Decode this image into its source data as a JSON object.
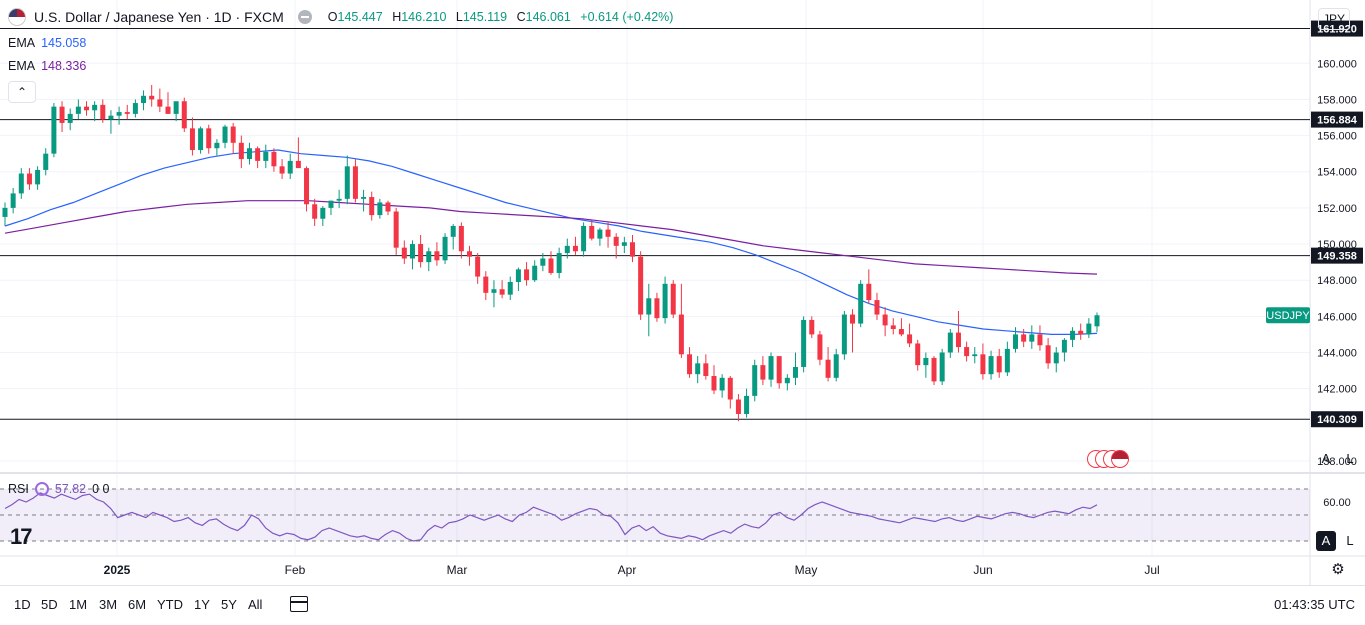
{
  "header": {
    "title": "U.S. Dollar / Japanese Yen · 1D · FXCM",
    "ohlc": [
      {
        "label": "O",
        "value": "145.447"
      },
      {
        "label": "H",
        "value": "146.210"
      },
      {
        "label": "L",
        "value": "145.119"
      },
      {
        "label": "C",
        "value": "146.061"
      },
      {
        "label": "",
        "value": "+0.614 (+0.42%)"
      }
    ]
  },
  "indicators": {
    "ema1": {
      "label": "EMA",
      "value": "145.058",
      "color": "#2962ff"
    },
    "ema2": {
      "label": "EMA",
      "value": "148.336",
      "color": "#7b1fa2"
    },
    "rsi": {
      "label": "RSI",
      "value": "57.82",
      "extra": "0 0",
      "color": "#7e57c2"
    }
  },
  "price_axis": {
    "currency": "JPY",
    "ticks": [
      "160.000",
      "158.000",
      "156.000",
      "154.000",
      "152.000",
      "150.000",
      "148.000",
      "146.000",
      "144.000",
      "142.000",
      "138.000"
    ],
    "symbol_label": "USDJPY",
    "rsi_tick": "60.00",
    "scale_buttons": [
      "A",
      "L"
    ]
  },
  "horizontal_lines": [
    "161.920",
    "156.884",
    "149.358",
    "140.309"
  ],
  "time_axis": {
    "labels": [
      "2025",
      "Feb",
      "Mar",
      "Apr",
      "May",
      "Jun",
      "Jul"
    ]
  },
  "toolbar": {
    "ranges": [
      "1D",
      "5D",
      "1M",
      "3M",
      "6M",
      "YTD",
      "1Y",
      "5Y",
      "All"
    ],
    "clock": "01:43:35 UTC"
  },
  "colors": {
    "up": "#089981",
    "down": "#f23645",
    "rsi_band": "#7e57c2",
    "ema_fast": "#2962ff",
    "ema_slow": "#7b1fa2"
  },
  "chart_data": {
    "type": "candlestick",
    "ylim": [
      137.5,
      163.5
    ],
    "candles": [
      [
        151.5,
        152.3,
        151.0,
        152.0
      ],
      [
        152.0,
        153.1,
        151.7,
        152.8
      ],
      [
        152.8,
        154.2,
        152.5,
        153.9
      ],
      [
        153.9,
        154.2,
        153.0,
        153.3
      ],
      [
        153.3,
        154.3,
        153.0,
        154.1
      ],
      [
        154.1,
        155.3,
        153.8,
        155.0
      ],
      [
        155.0,
        157.8,
        154.8,
        157.6
      ],
      [
        157.6,
        157.9,
        156.2,
        156.7
      ],
      [
        156.7,
        157.5,
        156.3,
        157.2
      ],
      [
        157.2,
        158.0,
        156.9,
        157.6
      ],
      [
        157.6,
        157.9,
        157.1,
        157.4
      ],
      [
        157.4,
        157.9,
        156.8,
        157.7
      ],
      [
        157.7,
        158.0,
        156.7,
        156.9
      ],
      [
        156.9,
        157.4,
        156.1,
        157.1
      ],
      [
        157.1,
        157.6,
        156.6,
        157.3
      ],
      [
        157.3,
        157.7,
        156.9,
        157.2
      ],
      [
        157.2,
        158.0,
        157.0,
        157.8
      ],
      [
        157.8,
        158.5,
        157.4,
        158.2
      ],
      [
        158.2,
        158.8,
        157.6,
        158.0
      ],
      [
        158.0,
        158.6,
        157.3,
        157.6
      ],
      [
        157.6,
        158.4,
        157.2,
        157.2
      ],
      [
        157.2,
        157.8,
        156.8,
        157.9
      ],
      [
        157.9,
        158.1,
        156.2,
        156.4
      ],
      [
        156.4,
        157.0,
        154.9,
        155.2
      ],
      [
        155.2,
        156.5,
        155.0,
        156.4
      ],
      [
        156.4,
        156.6,
        155.0,
        155.3
      ],
      [
        155.3,
        155.8,
        154.9,
        155.6
      ],
      [
        155.6,
        156.6,
        155.3,
        156.5
      ],
      [
        156.5,
        156.7,
        155.0,
        155.6
      ],
      [
        155.6,
        156.0,
        154.2,
        154.7
      ],
      [
        154.7,
        155.6,
        154.4,
        155.3
      ],
      [
        155.3,
        155.4,
        154.2,
        154.6
      ],
      [
        154.6,
        155.5,
        154.2,
        155.1
      ],
      [
        155.1,
        155.3,
        154.0,
        154.3
      ],
      [
        154.3,
        154.7,
        153.6,
        153.9
      ],
      [
        153.9,
        155.0,
        153.6,
        154.6
      ],
      [
        154.6,
        155.9,
        154.3,
        154.2
      ],
      [
        154.2,
        154.3,
        151.8,
        152.2
      ],
      [
        152.2,
        152.5,
        151.0,
        151.4
      ],
      [
        151.4,
        152.1,
        151.0,
        152.0
      ],
      [
        152.0,
        152.4,
        151.6,
        152.4
      ],
      [
        152.4,
        153.0,
        152.0,
        152.5
      ],
      [
        152.5,
        154.9,
        152.2,
        154.3
      ],
      [
        154.3,
        154.7,
        152.3,
        152.5
      ],
      [
        152.5,
        153.0,
        151.8,
        152.6
      ],
      [
        152.6,
        152.9,
        151.3,
        151.6
      ],
      [
        151.6,
        152.5,
        151.4,
        152.3
      ],
      [
        152.3,
        152.4,
        151.6,
        151.8
      ],
      [
        151.8,
        152.0,
        149.4,
        149.8
      ],
      [
        149.8,
        150.2,
        148.9,
        149.2
      ],
      [
        149.2,
        150.2,
        148.6,
        150.0
      ],
      [
        150.0,
        150.5,
        148.7,
        149.0
      ],
      [
        149.0,
        149.8,
        148.5,
        149.6
      ],
      [
        149.6,
        150.1,
        148.8,
        149.1
      ],
      [
        149.1,
        150.6,
        148.9,
        150.4
      ],
      [
        150.4,
        151.1,
        149.7,
        151.0
      ],
      [
        151.0,
        151.2,
        149.2,
        149.6
      ],
      [
        149.6,
        149.9,
        148.8,
        149.3
      ],
      [
        149.3,
        149.5,
        147.8,
        148.2
      ],
      [
        148.2,
        148.5,
        146.9,
        147.3
      ],
      [
        147.3,
        148.0,
        146.5,
        147.5
      ],
      [
        147.5,
        148.0,
        147.0,
        147.2
      ],
      [
        147.2,
        148.2,
        146.9,
        147.9
      ],
      [
        147.9,
        148.7,
        147.4,
        148.6
      ],
      [
        148.6,
        149.0,
        147.7,
        148.0
      ],
      [
        148.0,
        149.1,
        147.9,
        148.8
      ],
      [
        148.8,
        149.5,
        148.5,
        149.2
      ],
      [
        149.2,
        149.6,
        148.3,
        148.4
      ],
      [
        148.4,
        149.8,
        148.1,
        149.5
      ],
      [
        149.5,
        150.3,
        149.2,
        149.9
      ],
      [
        149.9,
        150.4,
        149.4,
        149.6
      ],
      [
        149.6,
        151.2,
        149.3,
        151.0
      ],
      [
        151.0,
        151.3,
        150.2,
        150.3
      ],
      [
        150.3,
        150.9,
        149.9,
        150.8
      ],
      [
        150.8,
        151.2,
        149.8,
        150.4
      ],
      [
        150.4,
        150.6,
        149.2,
        149.9
      ],
      [
        149.9,
        150.4,
        149.5,
        150.1
      ],
      [
        150.1,
        150.5,
        149.0,
        149.3
      ],
      [
        149.3,
        149.6,
        145.8,
        146.1
      ],
      [
        146.1,
        147.8,
        144.9,
        147.0
      ],
      [
        147.0,
        147.3,
        145.7,
        145.9
      ],
      [
        145.9,
        148.2,
        145.6,
        147.8
      ],
      [
        147.8,
        148.0,
        145.9,
        146.1
      ],
      [
        146.1,
        147.8,
        143.7,
        143.9
      ],
      [
        143.9,
        144.3,
        142.6,
        142.8
      ],
      [
        142.8,
        143.8,
        142.3,
        143.4
      ],
      [
        143.4,
        143.9,
        142.5,
        142.7
      ],
      [
        142.7,
        143.3,
        141.7,
        141.9
      ],
      [
        141.9,
        142.8,
        141.5,
        142.6
      ],
      [
        142.6,
        142.7,
        140.9,
        141.4
      ],
      [
        141.4,
        141.7,
        140.2,
        140.6
      ],
      [
        140.6,
        142.0,
        140.4,
        141.6
      ],
      [
        141.6,
        143.6,
        141.3,
        143.3
      ],
      [
        143.3,
        143.8,
        142.2,
        142.5
      ],
      [
        142.5,
        144.0,
        142.1,
        143.8
      ],
      [
        143.8,
        143.8,
        142.0,
        142.3
      ],
      [
        142.3,
        142.8,
        141.9,
        142.6
      ],
      [
        142.6,
        144.0,
        142.2,
        143.2
      ],
      [
        143.2,
        146.0,
        142.9,
        145.8
      ],
      [
        145.8,
        146.0,
        144.8,
        145.0
      ],
      [
        145.0,
        145.2,
        143.3,
        143.6
      ],
      [
        143.6,
        144.3,
        142.4,
        142.6
      ],
      [
        142.6,
        144.2,
        142.4,
        143.9
      ],
      [
        143.9,
        146.3,
        143.6,
        146.1
      ],
      [
        146.1,
        146.4,
        144.0,
        145.6
      ],
      [
        145.6,
        148.0,
        145.4,
        147.8
      ],
      [
        147.8,
        148.6,
        146.7,
        146.9
      ],
      [
        146.9,
        147.3,
        145.8,
        146.1
      ],
      [
        146.1,
        146.5,
        144.9,
        145.5
      ],
      [
        145.5,
        145.9,
        145.0,
        145.3
      ],
      [
        145.3,
        145.9,
        144.9,
        145.0
      ],
      [
        145.0,
        145.6,
        144.3,
        144.5
      ],
      [
        144.5,
        144.7,
        143.0,
        143.3
      ],
      [
        143.3,
        144.0,
        142.6,
        143.7
      ],
      [
        143.7,
        143.8,
        142.2,
        142.4
      ],
      [
        142.4,
        144.2,
        142.2,
        144.0
      ],
      [
        144.0,
        145.3,
        143.7,
        145.1
      ],
      [
        145.1,
        146.3,
        144.0,
        144.3
      ],
      [
        144.3,
        144.6,
        143.5,
        143.8
      ],
      [
        143.8,
        144.3,
        143.4,
        143.9
      ],
      [
        143.9,
        144.5,
        142.5,
        142.8
      ],
      [
        142.8,
        144.1,
        142.5,
        143.8
      ],
      [
        143.8,
        144.2,
        142.6,
        142.9
      ],
      [
        142.9,
        144.6,
        142.7,
        144.2
      ],
      [
        144.2,
        145.4,
        144.0,
        145.0
      ],
      [
        145.0,
        145.3,
        144.3,
        144.6
      ],
      [
        144.6,
        145.5,
        144.2,
        145.0
      ],
      [
        145.0,
        145.5,
        144.1,
        144.4
      ],
      [
        144.4,
        144.8,
        143.1,
        143.4
      ],
      [
        143.4,
        144.3,
        142.9,
        144.0
      ],
      [
        144.0,
        144.8,
        143.5,
        144.7
      ],
      [
        144.7,
        145.4,
        144.3,
        145.2
      ],
      [
        145.2,
        145.6,
        144.7,
        145.0
      ],
      [
        145.0,
        145.9,
        144.8,
        145.6
      ],
      [
        145.447,
        146.21,
        145.119,
        146.061
      ]
    ],
    "ema_fast": [
      151.0,
      151.4,
      151.9,
      152.3,
      152.8,
      153.3,
      153.8,
      154.2,
      154.5,
      154.8,
      155.0,
      155.1,
      155.2,
      155.0,
      154.9,
      154.8,
      154.6,
      154.3,
      153.9,
      153.5,
      153.1,
      152.7,
      152.3,
      152.0,
      151.7,
      151.4,
      151.2,
      151.0,
      150.7,
      150.5,
      150.3,
      150.1,
      149.8,
      149.4,
      148.9,
      148.4,
      147.8,
      147.2,
      146.7,
      146.3,
      146.0,
      145.7,
      145.5,
      145.3,
      145.2,
      145.1,
      145.0,
      145.0,
      145.058
    ],
    "ema_slow": [
      150.6,
      150.9,
      151.2,
      151.5,
      151.8,
      152.0,
      152.2,
      152.3,
      152.4,
      152.4,
      152.4,
      152.3,
      152.2,
      152.1,
      152.0,
      151.8,
      151.7,
      151.6,
      151.5,
      151.4,
      151.2,
      151.0,
      150.8,
      150.5,
      150.2,
      149.9,
      149.7,
      149.5,
      149.3,
      149.1,
      148.9,
      148.8,
      148.7,
      148.6,
      148.5,
      148.4,
      148.336
    ],
    "rsi": [
      55,
      58,
      62,
      60,
      63,
      67,
      65,
      63,
      66,
      64,
      62,
      65,
      66,
      62,
      60,
      55,
      48,
      50,
      52,
      50,
      48,
      52,
      50,
      48,
      45,
      46,
      48,
      44,
      42,
      46,
      47,
      43,
      40,
      38,
      42,
      50,
      47,
      40,
      36,
      34,
      36,
      35,
      32,
      31,
      33,
      38,
      40,
      38,
      36,
      34,
      33,
      34,
      32,
      31,
      35,
      38,
      36,
      32,
      30,
      31,
      38,
      42,
      40,
      44,
      45,
      47,
      50,
      48,
      46,
      48,
      50,
      47,
      45,
      50,
      52,
      56,
      54,
      52,
      50,
      46,
      48,
      51,
      53,
      55,
      54,
      50,
      49,
      44,
      35,
      40,
      42,
      38,
      41,
      36,
      34,
      33,
      32,
      34,
      33,
      31,
      34,
      36,
      38,
      36,
      40,
      43,
      41,
      40,
      44,
      50,
      52,
      48,
      46,
      50,
      55,
      58,
      60,
      58,
      56,
      54,
      52,
      51,
      50,
      49,
      47,
      46,
      45,
      44,
      46,
      48,
      47,
      46,
      45,
      47,
      48,
      46,
      45,
      47,
      49,
      48,
      47,
      49,
      51,
      52,
      51,
      49,
      48,
      50,
      52,
      53,
      52,
      51,
      54,
      56,
      55,
      57.82
    ],
    "rsi_band": [
      30,
      70
    ]
  }
}
